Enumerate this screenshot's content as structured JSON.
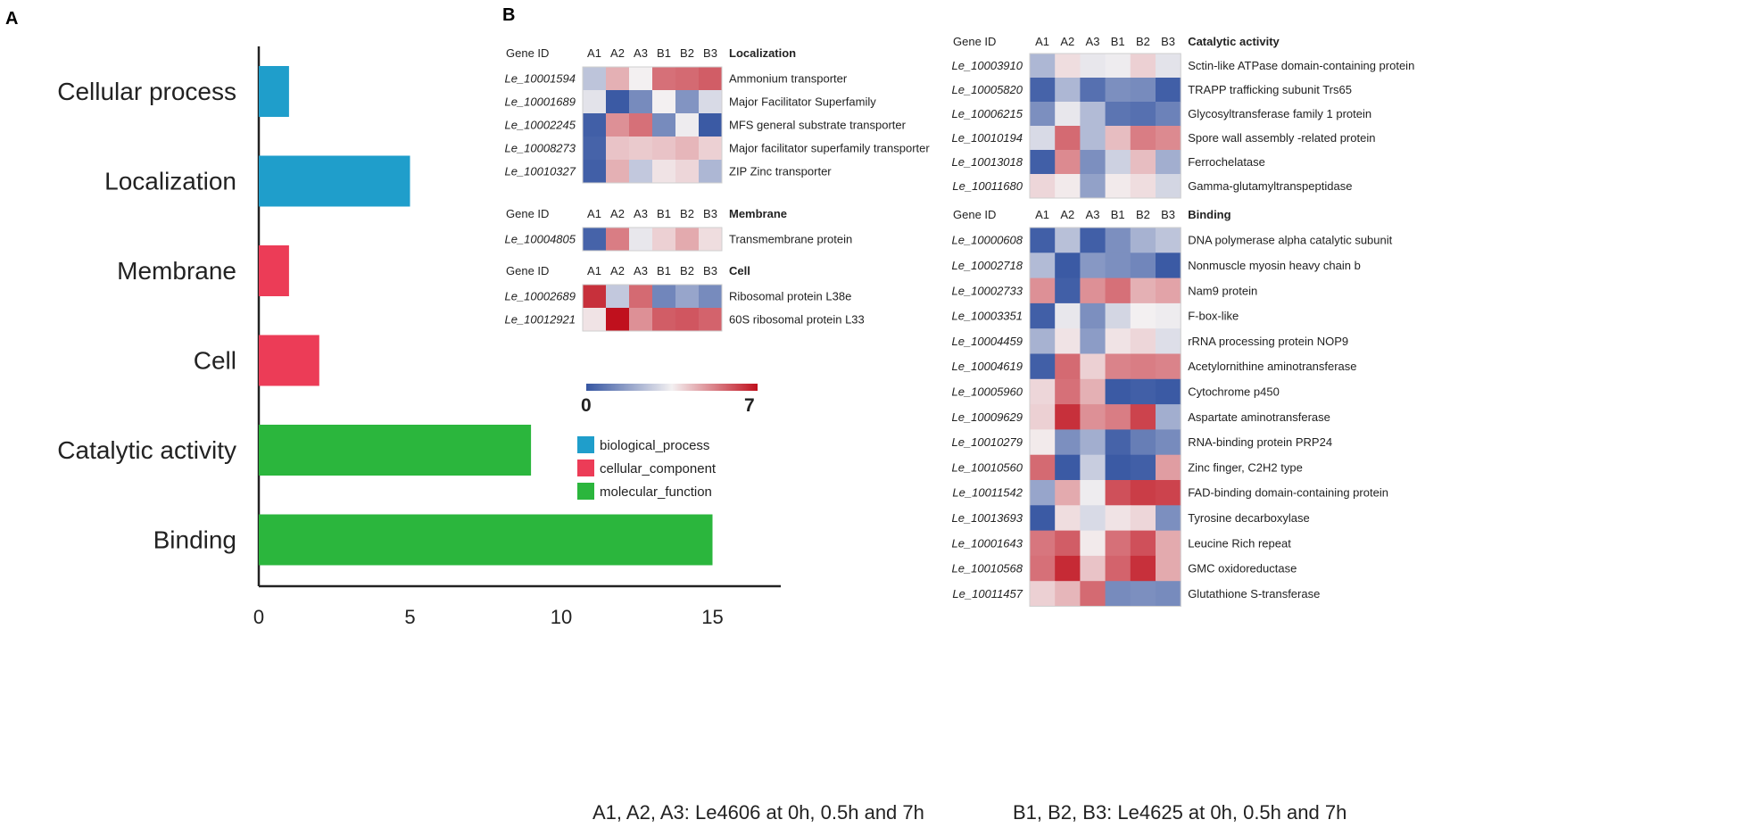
{
  "panels": {
    "a": "A",
    "b": "B"
  },
  "chart_data": [
    {
      "type": "bar",
      "orientation": "horizontal",
      "categories": [
        "Cellular process",
        "Localization",
        "Membrane",
        "Cell",
        "Catalytic activity",
        "Binding"
      ],
      "values": [
        1,
        5,
        1,
        2,
        9,
        15
      ],
      "groups": [
        "biological_process",
        "biological_process",
        "cellular_component",
        "cellular_component",
        "molecular_function",
        "molecular_function"
      ],
      "xticks": [
        0,
        5,
        10,
        15
      ],
      "xlim": [
        0,
        16.5
      ],
      "legend": [
        {
          "label": "biological_process",
          "color": "#1f9ecb"
        },
        {
          "label": "cellular_component",
          "color": "#ec3c57"
        },
        {
          "label": "molecular_function",
          "color": "#2bb63d"
        }
      ]
    },
    {
      "type": "heatmap",
      "columns": [
        "A1",
        "A2",
        "A3",
        "B1",
        "B2",
        "B3"
      ],
      "col_header": "Gene ID",
      "scale_min": "0",
      "scale_max": "7",
      "blocks": [
        {
          "title": "Localization",
          "rows": [
            {
              "id": "Le_10001594",
              "name": "Ammonium transporter",
              "values": [
                2.5,
                4.5,
                3.5,
                5.5,
                5.6,
                5.8
              ]
            },
            {
              "id": "Le_10001689",
              "name": "Major Facilitator Superfamily",
              "values": [
                3.2,
                0.1,
                1.2,
                3.5,
                1.4,
                3
              ]
            },
            {
              "id": "Le_10002245",
              "name": "MFS general substrate transporter",
              "values": [
                0.2,
                5,
                5.5,
                1.2,
                3.4,
                0.1
              ]
            },
            {
              "id": "Le_10008273",
              "name": "Major facilitator superfamily transporter",
              "values": [
                0.3,
                4.2,
                4.1,
                4.2,
                4.4,
                4
              ]
            },
            {
              "id": "Le_10010327",
              "name": "ZIP Zinc transporter",
              "values": [
                0.2,
                4.5,
                2.6,
                3.7,
                3.9,
                2.2
              ]
            }
          ]
        },
        {
          "title": "Membrane",
          "rows": [
            {
              "id": "Le_10004805",
              "name": "Transmembrane protein",
              "values": [
                0.3,
                5.3,
                3.3,
                4,
                4.6,
                3.8
              ]
            }
          ]
        },
        {
          "title": "Cell",
          "rows": [
            {
              "id": "Le_10002689",
              "name": "Ribosomal protein L38e",
              "values": [
                6.5,
                2.6,
                5.6,
                1.1,
                1.8,
                1.2
              ]
            },
            {
              "id": "Le_10012921",
              "name": "60S ribosomal protein L33",
              "values": [
                3.7,
                7,
                5,
                5.8,
                5.9,
                5.7
              ]
            }
          ]
        },
        {
          "title": "Catalytic activity",
          "rows": [
            {
              "id": "Le_10003910",
              "name": "Sctin-like ATPase domain-containing protein",
              "values": [
                2.2,
                3.8,
                3.3,
                3.4,
                4,
                3.2
              ]
            },
            {
              "id": "Le_10005820",
              "name": "TRAPP trafficking subunit Trs65",
              "values": [
                0.3,
                2.2,
                0.6,
                1.3,
                1.2,
                0.2
              ]
            },
            {
              "id": "Le_10006215",
              "name": "Glycosyltransferase family 1 protein",
              "values": [
                1.3,
                3.3,
                2.3,
                0.7,
                0.6,
                1
              ]
            },
            {
              "id": "Le_10010194",
              "name": "Spore wall assembly -related protein",
              "values": [
                3,
                5.6,
                2.3,
                4.3,
                5.3,
                5.1
              ]
            },
            {
              "id": "Le_10013018",
              "name": "Ferrochelatase",
              "values": [
                0.2,
                5.1,
                1.3,
                2.8,
                4.3,
                2
              ]
            },
            {
              "id": "Le_10011680",
              "name": "Gamma-glutamyltranspeptidase",
              "values": [
                3.9,
                3.6,
                1.7,
                3.6,
                3.8,
                2.9
              ]
            }
          ]
        },
        {
          "title": "Binding",
          "rows": [
            {
              "id": "Le_10000608",
              "name": "DNA polymerase alpha catalytic subunit",
              "values": [
                0.2,
                2.4,
                0.2,
                1.3,
                2.1,
                2.5
              ]
            },
            {
              "id": "Le_10002718",
              "name": "Nonmuscle myosin heavy chain b",
              "values": [
                2.3,
                0.1,
                1.5,
                1.3,
                1.1,
                0.1
              ]
            },
            {
              "id": "Le_10002733",
              "name": "Nam9 protein",
              "values": [
                5,
                0.2,
                5,
                5.5,
                4.5,
                4.7
              ]
            },
            {
              "id": "Le_10003351",
              "name": "F-box-like",
              "values": [
                0.2,
                3.3,
                1.3,
                2.9,
                3.5,
                3.4
              ]
            },
            {
              "id": "Le_10004459",
              "name": "rRNA processing protein NOP9",
              "values": [
                2.1,
                3.7,
                1.6,
                3.7,
                3.9,
                3.1
              ]
            },
            {
              "id": "Le_10004619",
              "name": "Acetylornithine aminotransferase",
              "values": [
                0.2,
                5.6,
                4,
                5.2,
                5.3,
                5.2
              ]
            },
            {
              "id": "Le_10005960",
              "name": "Cytochrome p450",
              "values": [
                3.9,
                5.5,
                4.5,
                0.1,
                0.2,
                0.1
              ]
            },
            {
              "id": "Le_10009629",
              "name": "Aspartate aminotransferase",
              "values": [
                4,
                6.5,
                5,
                5.3,
                6.2,
                2
              ]
            },
            {
              "id": "Le_10010279",
              "name": "RNA-binding protein PRP24",
              "values": [
                3.6,
                1.3,
                2,
                0.3,
                0.9,
                1.2
              ]
            },
            {
              "id": "Le_10010560",
              "name": "Zinc finger, C2H2 type",
              "values": [
                5.6,
                0.1,
                2.7,
                0.1,
                0.2,
                4.8
              ]
            },
            {
              "id": "Le_10011542",
              "name": "FAD-binding domain-containing protein",
              "values": [
                1.8,
                4.6,
                3.4,
                6,
                6.3,
                6.2
              ]
            },
            {
              "id": "Le_10013693",
              "name": "Tyrosine decarboxylase",
              "values": [
                0.1,
                3.8,
                3,
                3.7,
                3.9,
                1.3
              ]
            },
            {
              "id": "Le_10001643",
              "name": "Leucine Rich repeat",
              "values": [
                5.4,
                5.8,
                3.6,
                5.5,
                6,
                4.6
              ]
            },
            {
              "id": "Le_10010568",
              "name": "GMC oxidoreductase",
              "values": [
                5.5,
                6.6,
                4.2,
                5.7,
                6.5,
                4.6
              ]
            },
            {
              "id": "Le_10011457",
              "name": "Glutathione S-transferase",
              "values": [
                4,
                4.4,
                5.6,
                1.2,
                1.3,
                1.2
              ]
            }
          ]
        }
      ]
    }
  ],
  "footer": {
    "left": "A1, A2, A3: Le4606 at 0h, 0.5h and 7h",
    "right": "B1, B2, B3: Le4625 at 0h, 0.5h and 7h"
  }
}
